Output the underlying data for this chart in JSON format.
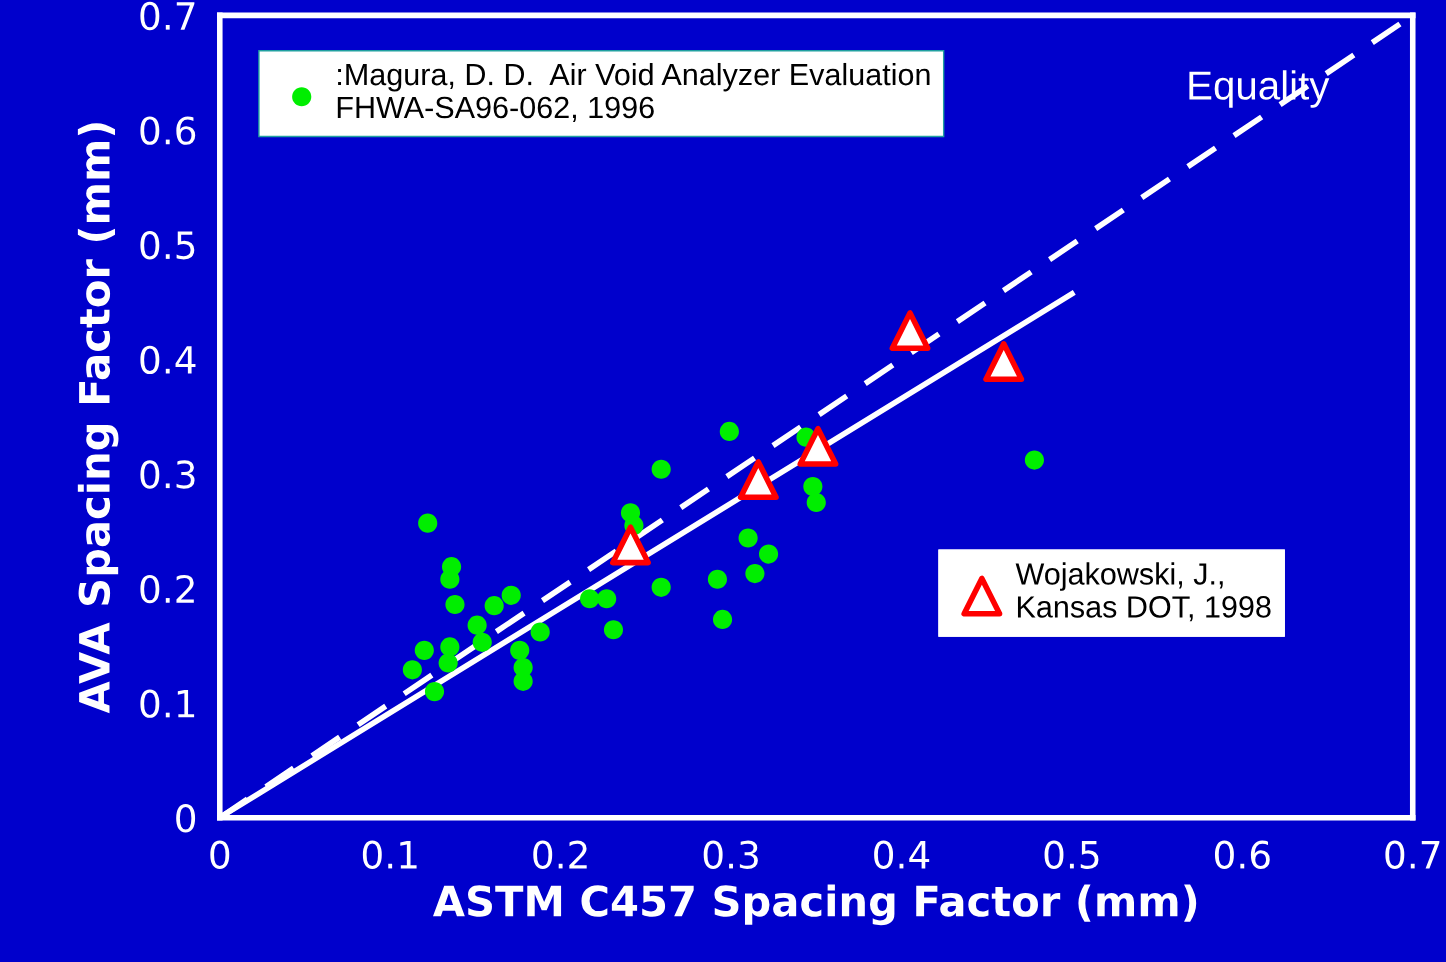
{
  "chart_data": {
    "type": "scatter",
    "xlabel": "ASTM C457 Spacing Factor (mm)",
    "ylabel": "AVA Spacing Factor (mm)",
    "xlim": [
      0,
      0.7
    ],
    "ylim": [
      0,
      0.7
    ],
    "xticks": [
      0,
      0.1,
      0.2,
      0.3,
      0.4,
      0.5,
      0.6,
      0.7
    ],
    "yticks": [
      0,
      0.1,
      0.2,
      0.3,
      0.4,
      0.5,
      0.6,
      0.7
    ],
    "grid": false,
    "legend": "top left",
    "series": [
      {
        "name": ":Magura, D. D.  Air Void Analyzer Evaluation\nFHWA-SA96-062, 1996",
        "color": "#00ee00",
        "marker": "circle",
        "x": [
          0.122,
          0.136,
          0.135,
          0.138,
          0.161,
          0.171,
          0.151,
          0.154,
          0.12,
          0.135,
          0.134,
          0.113,
          0.126,
          0.176,
          0.178,
          0.178,
          0.188,
          0.217,
          0.227,
          0.231,
          0.241,
          0.243,
          0.259,
          0.259,
          0.292,
          0.295,
          0.299,
          0.31,
          0.314,
          0.322,
          0.344,
          0.348,
          0.35,
          0.478
        ],
        "values": [
          0.257,
          0.219,
          0.208,
          0.186,
          0.185,
          0.194,
          0.168,
          0.153,
          0.146,
          0.149,
          0.135,
          0.129,
          0.11,
          0.146,
          0.131,
          0.119,
          0.162,
          0.191,
          0.191,
          0.164,
          0.266,
          0.255,
          0.304,
          0.201,
          0.208,
          0.173,
          0.337,
          0.244,
          0.213,
          0.23,
          0.332,
          0.289,
          0.275,
          0.312
        ]
      },
      {
        "name": "Wojakowski, J.,\nKansas DOT, 1998",
        "color": "#ff0000",
        "marker": "triangle",
        "x": [
          0.241,
          0.316,
          0.351,
          0.405,
          0.46
        ],
        "values": [
          0.238,
          0.295,
          0.324,
          0.425,
          0.398
        ]
      },
      {
        "type": "line",
        "color": "#ffffff",
        "line_style": "solid",
        "x": [
          0.003,
          0.5
        ],
        "values": [
          0.003,
          0.457
        ]
      },
      {
        "type": "line",
        "name": "Equality",
        "color": "#ffffff",
        "line_style": "dashed",
        "x": [
          0,
          0.7
        ],
        "values": [
          0,
          0.7
        ]
      }
    ]
  }
}
